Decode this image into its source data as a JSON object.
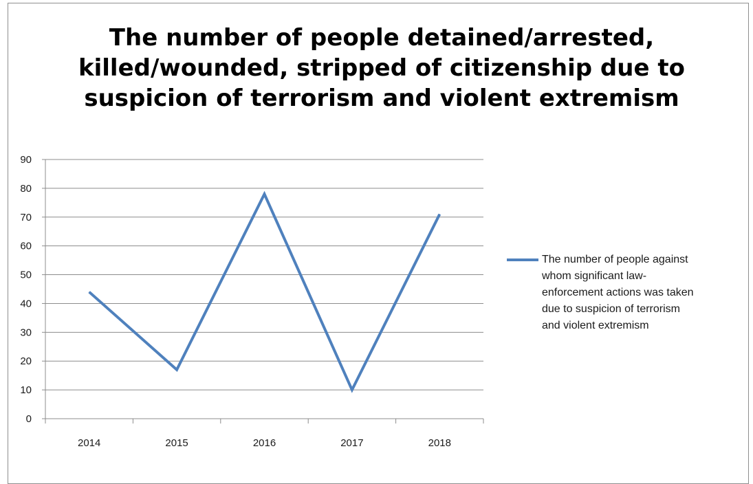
{
  "chart_data": {
    "type": "line",
    "title": [
      "The number of people detained/arrested,",
      "killed/wounded, stripped of citizenship due to",
      "suspicion of terrorism and violent extremism"
    ],
    "categories": [
      "2014",
      "2015",
      "2016",
      "2017",
      "2018"
    ],
    "series": [
      {
        "name": "The number of people against whom significant law-enforcement actions was taken due to suspicion of terrorism and violent extremism",
        "legend_lines": [
          "The number of people against",
          "whom significant law-",
          "enforcement actions was taken",
          "due to suspicion of terrorism",
          "and violent extremism"
        ],
        "values": [
          44,
          17,
          78,
          10,
          71
        ],
        "color": "#4f81bd"
      }
    ],
    "ylim": [
      0,
      90
    ],
    "yticks": [
      "0",
      "10",
      "20",
      "30",
      "40",
      "50",
      "60",
      "70",
      "80",
      "90"
    ],
    "xlabel": "",
    "ylabel": "",
    "grid": true,
    "legend_position": "right"
  }
}
